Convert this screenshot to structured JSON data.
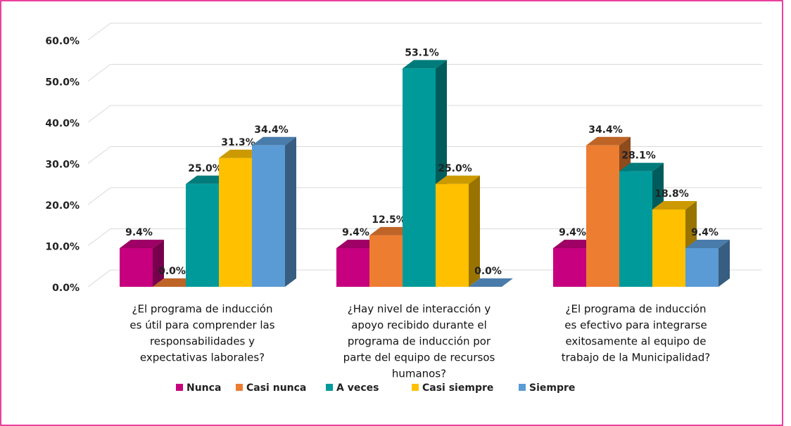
{
  "chart_data": {
    "type": "bar3d",
    "categories": [
      [
        "¿El programa de inducción",
        "es útil para comprender las",
        "responsabilidades y",
        "expectativas laborales?"
      ],
      [
        "¿Hay nivel de interacción y",
        "apoyo recibido durante el",
        "programa de inducción por",
        "parte del equipo de recursos",
        "humanos?"
      ],
      [
        "¿El programa de inducción",
        "es efectivo para integrarse",
        "exitosamente al equipo de",
        "trabajo de la Municipalidad?"
      ]
    ],
    "series": [
      {
        "name": "Nunca",
        "color": "#c6007e",
        "values": [
          9.4,
          9.4,
          9.4
        ],
        "value_labels": [
          "9.4%",
          "9.4%",
          "9.4%"
        ]
      },
      {
        "name": "Casi nunca",
        "color": "#ed7d31",
        "values": [
          0.0,
          12.5,
          34.4
        ],
        "value_labels": [
          "0.0%",
          "12.5%",
          "34.4%"
        ]
      },
      {
        "name": "A veces",
        "color": "#009a9a",
        "values": [
          25.0,
          53.1,
          28.1
        ],
        "value_labels": [
          "25.0%",
          "53.1%",
          "28.1%"
        ]
      },
      {
        "name": "Casi siempre",
        "color": "#ffc000",
        "values": [
          31.3,
          25.0,
          18.8
        ],
        "value_labels": [
          "31.3%",
          "25.0%",
          "18.8%"
        ]
      },
      {
        "name": "Siempre",
        "color": "#5b9bd5",
        "values": [
          34.4,
          0.0,
          9.4
        ],
        "value_labels": [
          "34.4%",
          "0.0%",
          "9.4%"
        ]
      }
    ],
    "ylim": [
      0,
      60
    ],
    "yticks": [
      {
        "value": 0,
        "label": "0.0%"
      },
      {
        "value": 10,
        "label": "10.0%"
      },
      {
        "value": 20,
        "label": "20.0%"
      },
      {
        "value": 30,
        "label": "30.0%"
      },
      {
        "value": 40,
        "label": "40.0%"
      },
      {
        "value": 50,
        "label": "50.0%"
      },
      {
        "value": 60,
        "label": "60.0%"
      }
    ],
    "grid": true,
    "legend": "bottom"
  }
}
